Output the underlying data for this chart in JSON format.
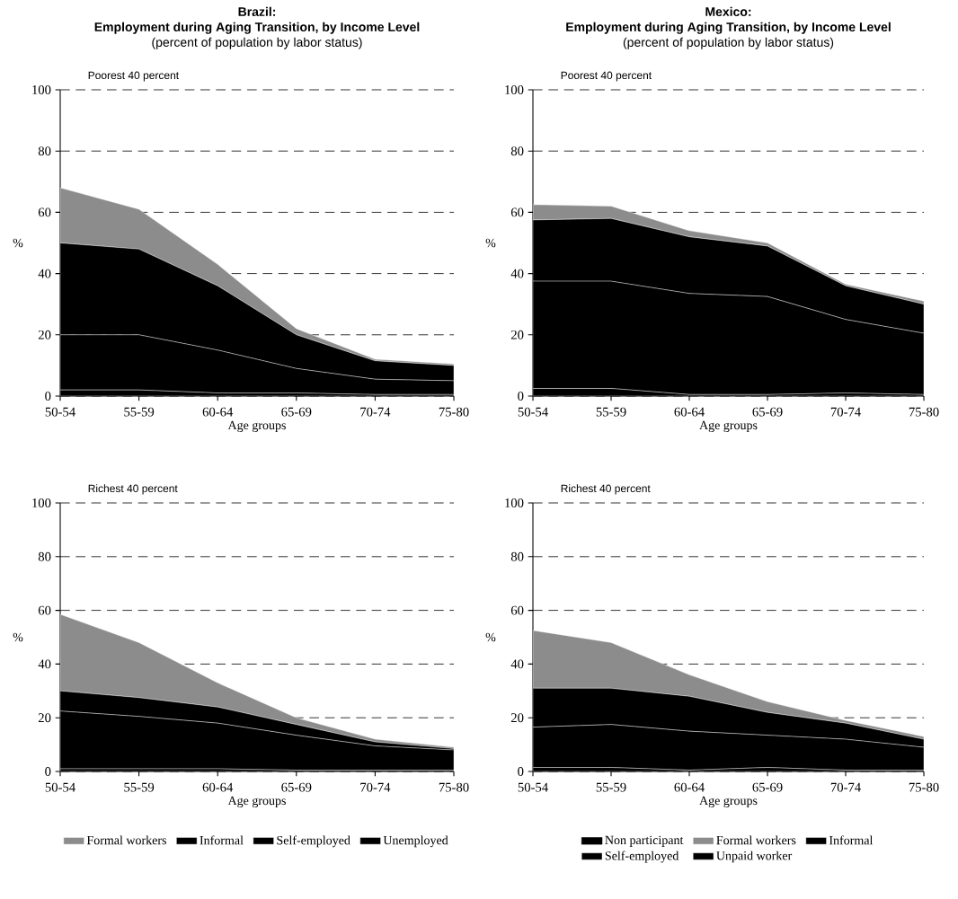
{
  "chart_data": [
    {
      "type": "area",
      "stacked": true,
      "title": "Brazil:",
      "subtitle": "Employment during Aging Transition, by Income Level",
      "annotations": [
        "(percent of population by labor status)",
        "Poorest 40 percent"
      ],
      "xlabel": "Age groups",
      "ylabel": "%",
      "categories": [
        "50-54",
        "55-59",
        "60-64",
        "65-69",
        "70-74",
        "75-80"
      ],
      "ylim": [
        0,
        100
      ],
      "yticks": [
        0,
        20,
        40,
        60,
        80,
        100
      ],
      "grid": "y",
      "legend": false,
      "series": [
        {
          "color": "#000000",
          "values": [
            2,
            2,
            1,
            1,
            0.5,
            0.5
          ]
        },
        {
          "color": "#000000",
          "values": [
            18,
            18,
            14,
            8,
            5,
            4.5
          ]
        },
        {
          "color": "#000000",
          "values": [
            30,
            28,
            21,
            11,
            6,
            5
          ]
        },
        {
          "color": "#8c8c8c",
          "values": [
            18,
            13,
            7,
            2,
            0.5,
            0.5
          ]
        }
      ]
    },
    {
      "type": "area",
      "stacked": true,
      "title": "Mexico:",
      "subtitle": "Employment during Aging Transition, by Income Level",
      "annotations": [
        "(percent of population by labor status)",
        "Poorest 40 percent"
      ],
      "xlabel": "Age groups",
      "ylabel": "%",
      "categories": [
        "50-54",
        "55-59",
        "60-64",
        "65-69",
        "70-74",
        "75-80"
      ],
      "ylim": [
        0,
        100
      ],
      "yticks": [
        0,
        20,
        40,
        60,
        80,
        100
      ],
      "grid": "y",
      "legend": false,
      "series": [
        {
          "color": "#000000",
          "values": [
            2.5,
            2.5,
            0.5,
            0.5,
            1,
            0.5
          ]
        },
        {
          "color": "#000000",
          "values": [
            35,
            35,
            33,
            32,
            24,
            20
          ]
        },
        {
          "color": "#000000",
          "values": [
            20,
            20.5,
            18.5,
            16.5,
            11,
            9.5
          ]
        },
        {
          "color": "#8c8c8c",
          "values": [
            5,
            4,
            2,
            1,
            0.5,
            1
          ]
        }
      ]
    },
    {
      "type": "area",
      "stacked": true,
      "annotations": [
        "Richest 40 percent"
      ],
      "xlabel": "Age groups",
      "ylabel": "%",
      "categories": [
        "50-54",
        "55-59",
        "60-64",
        "65-69",
        "70-74",
        "75-80"
      ],
      "ylim": [
        0,
        100
      ],
      "yticks": [
        0,
        20,
        40,
        60,
        80,
        100
      ],
      "grid": "y",
      "legend": "bottom",
      "series": [
        {
          "name": "Unemployed",
          "color": "#000000",
          "values": [
            1,
            1,
            1,
            0.5,
            0.5,
            0.5
          ]
        },
        {
          "name": "Self-employed",
          "color": "#000000",
          "values": [
            21.5,
            19.5,
            17,
            13,
            9,
            7.5
          ]
        },
        {
          "name": "Informal",
          "color": "#000000",
          "values": [
            7.5,
            7,
            6,
            4,
            1.5,
            0.5
          ]
        },
        {
          "name": "Formal workers",
          "color": "#8c8c8c",
          "values": [
            28.5,
            20.5,
            9,
            2.5,
            1,
            0.5
          ]
        }
      ]
    },
    {
      "type": "area",
      "stacked": true,
      "annotations": [
        "Richest 40 percent"
      ],
      "xlabel": "Age groups",
      "ylabel": "%",
      "categories": [
        "50-54",
        "55-59",
        "60-64",
        "65-69",
        "70-74",
        "75-80"
      ],
      "ylim": [
        0,
        100
      ],
      "yticks": [
        0,
        20,
        40,
        60,
        80,
        100
      ],
      "grid": "y",
      "legend": "bottom",
      "series": [
        {
          "name": "Unpaid worker",
          "color": "#000000",
          "values": [
            1.5,
            1.5,
            0.5,
            1.5,
            0.5,
            0.5
          ]
        },
        {
          "name": "Self-employed",
          "color": "#000000",
          "values": [
            15,
            16,
            14.5,
            12,
            11.5,
            8.5
          ]
        },
        {
          "name": "Informal",
          "color": "#000000",
          "values": [
            14.5,
            13.5,
            13,
            8.5,
            6,
            3
          ]
        },
        {
          "name": "Formal workers",
          "color": "#8c8c8c",
          "values": [
            21.5,
            17,
            8,
            4,
            1,
            1
          ]
        },
        {
          "name": "Non participant",
          "color": "#000000",
          "values": [
            null,
            null,
            null,
            null,
            null,
            null
          ]
        }
      ]
    }
  ]
}
